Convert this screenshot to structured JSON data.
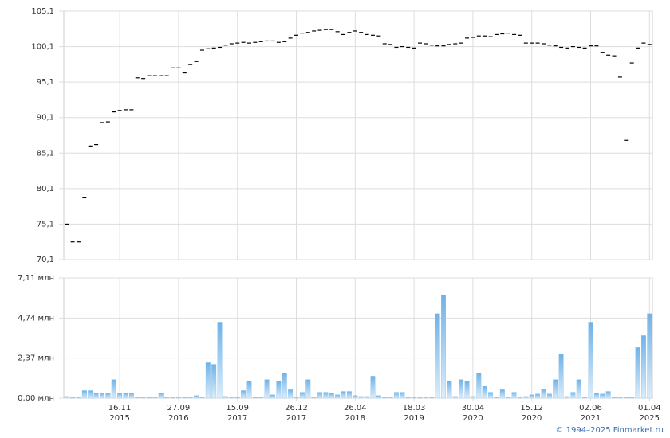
{
  "chart_data": [
    {
      "type": "dash",
      "color": "#000000",
      "ylim": [
        70.1,
        105.1
      ],
      "yticks": [
        {
          "value": 70.1,
          "label": "70,1"
        },
        {
          "value": 75.1,
          "label": "75,1"
        },
        {
          "value": 80.1,
          "label": "80,1"
        },
        {
          "value": 85.1,
          "label": "85,1"
        },
        {
          "value": 90.1,
          "label": "90,1"
        },
        {
          "value": 95.1,
          "label": "95,1"
        },
        {
          "value": 100.1,
          "label": "100,1"
        },
        {
          "value": 105.1,
          "label": "105,1"
        }
      ],
      "grid": true,
      "values": [
        75.1,
        72.6,
        72.6,
        78.8,
        86.1,
        86.3,
        89.4,
        89.5,
        90.9,
        91.1,
        91.2,
        91.2,
        95.7,
        95.6,
        96.0,
        96.0,
        96.0,
        96.0,
        97.1,
        97.1,
        96.4,
        97.6,
        98.0,
        99.6,
        99.8,
        99.9,
        100.0,
        100.3,
        100.5,
        100.6,
        100.7,
        100.6,
        100.7,
        100.8,
        100.9,
        100.9,
        100.7,
        100.8,
        101.3,
        101.7,
        102.0,
        102.1,
        102.3,
        102.4,
        102.5,
        102.5,
        102.2,
        101.8,
        102.1,
        102.3,
        102.1,
        101.8,
        101.7,
        101.6,
        100.5,
        100.4,
        100.0,
        100.1,
        100.0,
        99.9,
        100.6,
        100.5,
        100.3,
        100.2,
        100.2,
        100.4,
        100.5,
        100.6,
        101.3,
        101.4,
        101.6,
        101.6,
        101.5,
        101.8,
        101.9,
        102.0,
        101.8,
        101.7,
        100.6,
        100.6,
        100.6,
        100.5,
        100.3,
        100.2,
        100.0,
        99.9,
        100.1,
        100.0,
        99.9,
        100.2,
        100.2,
        99.3,
        98.9,
        98.8,
        95.8,
        86.9,
        97.8,
        99.9,
        100.6,
        100.4
      ]
    },
    {
      "type": "bar",
      "color": "#7cbbe9",
      "ylim": [
        0,
        7.11
      ],
      "yticks": [
        {
          "value": 0,
          "label": "0,00 млн"
        },
        {
          "value": 2.37,
          "label": "2,37 млн"
        },
        {
          "value": 4.74,
          "label": "4,74 млн"
        },
        {
          "value": 7.11,
          "label": "7,11 млн"
        }
      ],
      "grid": true,
      "xlim": [
        -0.5,
        99.5
      ],
      "xticks": [
        {
          "value": 9,
          "label": "16.11\n2015"
        },
        {
          "value": 19,
          "label": "27.09\n2016"
        },
        {
          "value": 29,
          "label": "15.09\n2017"
        },
        {
          "value": 39,
          "label": "26.12\n2017"
        },
        {
          "value": 49,
          "label": "26.04\n2018"
        },
        {
          "value": 59,
          "label": "18.03\n2019"
        },
        {
          "value": 69,
          "label": "30.04\n2020"
        },
        {
          "value": 79,
          "label": "15.12\n2020"
        },
        {
          "value": 89,
          "label": "02.06\n2021"
        },
        {
          "value": 99,
          "label": "01.04\n2025"
        }
      ],
      "values": [
        0.1,
        0.05,
        0.05,
        0.45,
        0.45,
        0.3,
        0.3,
        0.3,
        1.1,
        0.3,
        0.3,
        0.3,
        0.05,
        0.05,
        0.05,
        0.05,
        0.3,
        0.05,
        0.05,
        0.05,
        0.05,
        0.05,
        0.15,
        0.05,
        2.1,
        2.0,
        4.5,
        0.1,
        0.05,
        0.05,
        0.45,
        1.0,
        0.05,
        0.05,
        1.1,
        0.2,
        1.0,
        1.5,
        0.5,
        0.05,
        0.35,
        1.1,
        0.05,
        0.35,
        0.35,
        0.3,
        0.2,
        0.4,
        0.4,
        0.15,
        0.1,
        0.1,
        1.3,
        0.15,
        0.05,
        0.05,
        0.35,
        0.35,
        0.05,
        0.05,
        0.05,
        0.05,
        0.05,
        5.0,
        6.1,
        1.0,
        0.1,
        1.1,
        1.0,
        0.1,
        1.5,
        0.7,
        0.35,
        0.05,
        0.5,
        0.05,
        0.35,
        0.05,
        0.1,
        0.2,
        0.25,
        0.55,
        0.25,
        1.1,
        2.6,
        0.1,
        0.35,
        1.1,
        0.05,
        4.5,
        0.3,
        0.25,
        0.4,
        0.05,
        0.05,
        0.05,
        0.05,
        3.0,
        3.7,
        5.0
      ]
    }
  ],
  "copyright": "© 1994–2025 Finmarket.ru"
}
